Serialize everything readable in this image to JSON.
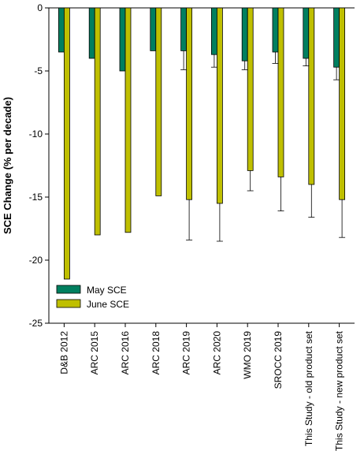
{
  "chart_data": {
    "type": "bar",
    "title": "",
    "xlabel": "",
    "ylabel": "SCE Change (% per decade)",
    "ylim": [
      -25,
      0
    ],
    "yticks": [
      0,
      -5,
      -10,
      -15,
      -20,
      -25
    ],
    "grid": false,
    "legend_position": "bottom-left",
    "categories": [
      "D&B 2012",
      "ARC 2015",
      "ARC 2016",
      "ARC 2018",
      "ARC 2019",
      "ARC 2020",
      "WMO 2019",
      "SROCC 2019",
      "This Study - old product set",
      "This Study - new product set"
    ],
    "series": [
      {
        "name": "May SCE",
        "color": "#007f5f",
        "values": [
          -3.5,
          -4.0,
          -5.0,
          -3.4,
          -3.4,
          -3.7,
          -4.2,
          -3.5,
          -4.0,
          -4.7
        ],
        "error": [
          null,
          null,
          null,
          null,
          1.5,
          1.0,
          0.7,
          0.9,
          0.6,
          1.0
        ]
      },
      {
        "name": "June SCE",
        "color": "#bfbf00",
        "values": [
          -21.5,
          -18.0,
          -17.8,
          -14.9,
          -15.2,
          -15.5,
          -12.9,
          -13.4,
          -14.0,
          -15.2
        ],
        "error": [
          null,
          null,
          null,
          null,
          3.2,
          3.0,
          1.6,
          2.7,
          2.6,
          3.0
        ]
      }
    ]
  }
}
